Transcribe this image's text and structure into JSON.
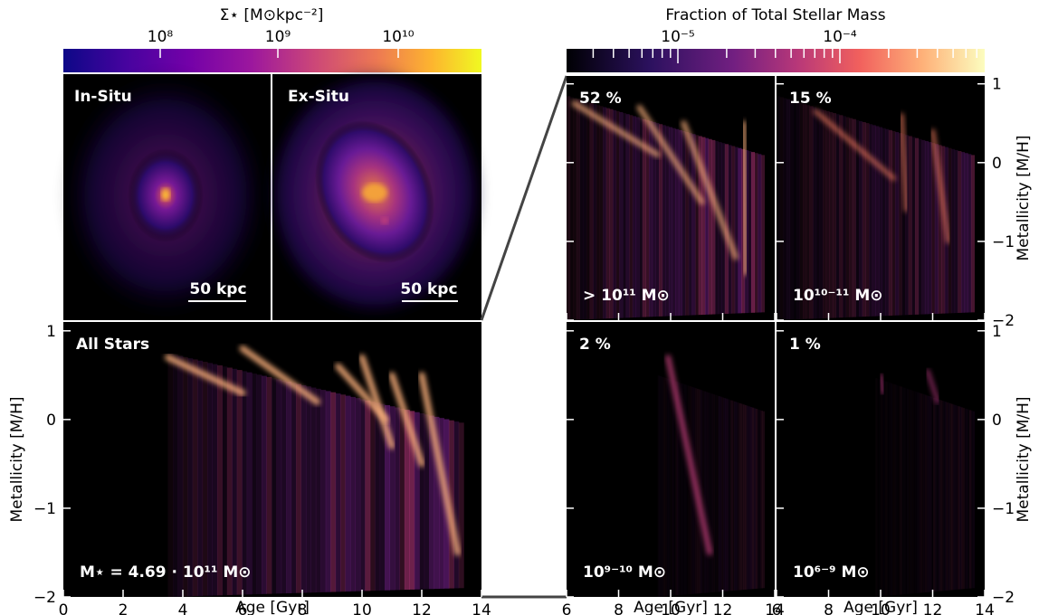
{
  "colorbars": {
    "left": {
      "label": "Σ⋆ [M⊙kpc⁻²]",
      "ticks": [
        "10⁸",
        "10⁹",
        "10¹⁰"
      ],
      "colormap": "plasma"
    },
    "right": {
      "label": "Fraction of Total Stellar Mass",
      "ticks": [
        "10⁻⁵",
        "10⁻⁴"
      ],
      "colormap": "magma"
    }
  },
  "maps": [
    {
      "name": "In-Situ",
      "scale_label": "50 kpc"
    },
    {
      "name": "Ex-Situ",
      "scale_label": "50 kpc"
    }
  ],
  "chart_data": [
    {
      "type": "heatmap",
      "panel": "All Stars",
      "label": "All Stars",
      "annotation": "M⋆ = 4.69 · 10¹¹ M⊙",
      "xlabel": "Age [Gyr]",
      "ylabel": "Metallicity [M/H]",
      "xlim": [
        0,
        14
      ],
      "ylim": [
        -2,
        1.1
      ],
      "xticks": [
        0,
        2,
        4,
        6,
        8,
        10,
        12,
        14
      ],
      "yticks": [
        -2,
        -1,
        0,
        1
      ],
      "ridges": [
        {
          "x": [
            3.5,
            6.0
          ],
          "y": [
            0.7,
            0.3
          ]
        },
        {
          "x": [
            6.0,
            8.5
          ],
          "y": [
            0.8,
            0.2
          ]
        },
        {
          "x": [
            9.2,
            10.8
          ],
          "y": [
            0.6,
            0.0
          ]
        },
        {
          "x": [
            10.0,
            11.0
          ],
          "y": [
            0.7,
            -0.3
          ]
        },
        {
          "x": [
            11.0,
            12.0
          ],
          "y": [
            0.5,
            -0.5
          ]
        },
        {
          "x": [
            12.0,
            13.2
          ],
          "y": [
            0.5,
            -1.5
          ]
        }
      ]
    },
    {
      "type": "heatmap",
      "panel": "accreted mass > 10^11",
      "fraction": "52 %",
      "mass_label": "> 10¹¹ M⊙",
      "xlim": [
        6,
        14
      ],
      "ylim": [
        -2,
        1.1
      ],
      "xticks": [
        6,
        8,
        10,
        12,
        14
      ],
      "yticks": [
        -2,
        -1,
        0,
        1
      ]
    },
    {
      "type": "heatmap",
      "panel": "accreted mass 10^10-11",
      "fraction": "15 %",
      "mass_label": "10¹⁰⁻¹¹ M⊙",
      "ylabel": "Metallicity [M/H]",
      "xlim": [
        6,
        14
      ],
      "ylim": [
        -2,
        1.1
      ],
      "xticks": [
        6,
        8,
        10,
        12,
        14
      ],
      "yticks": [
        -2,
        -1,
        0,
        1
      ]
    },
    {
      "type": "heatmap",
      "panel": "accreted mass 10^9-10",
      "fraction": "2 %",
      "mass_label": "10⁹⁻¹⁰ M⊙",
      "xlabel": "Age [Gyr]",
      "xlim": [
        6,
        14
      ],
      "ylim": [
        -2,
        1.1
      ],
      "xticks": [
        6,
        8,
        10,
        12,
        14
      ],
      "yticks": [
        -2,
        -1,
        0,
        1
      ]
    },
    {
      "type": "heatmap",
      "panel": "accreted mass 10^6-9",
      "fraction": "1 %",
      "mass_label": "10⁶⁻⁹ M⊙",
      "xlabel": "Age [Gyr]",
      "ylabel": "Metallicity [M/H]",
      "xlim": [
        6,
        14
      ],
      "ylim": [
        -2,
        1.1
      ],
      "xticks": [
        6,
        8,
        10,
        12,
        14
      ],
      "yticks": [
        -2,
        -1,
        0,
        1
      ]
    }
  ]
}
